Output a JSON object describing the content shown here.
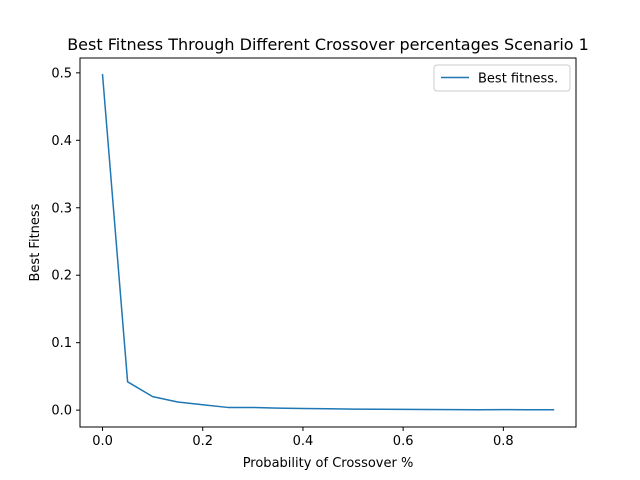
{
  "chart_data": {
    "type": "line",
    "title": "Best Fitness Through Different Crossover percentages Scenario 1",
    "xlabel": "Probability of Crossover %",
    "ylabel": "Best Fitness",
    "xlim": [
      -0.045,
      0.945
    ],
    "ylim": [
      -0.025,
      0.522
    ],
    "xticks": [
      0.0,
      0.2,
      0.4,
      0.6,
      0.8
    ],
    "xtick_labels": [
      "0.0",
      "0.2",
      "0.4",
      "0.6",
      "0.8"
    ],
    "yticks": [
      0.0,
      0.1,
      0.2,
      0.3,
      0.4,
      0.5
    ],
    "ytick_labels": [
      "0.0",
      "0.1",
      "0.2",
      "0.3",
      "0.4",
      "0.5"
    ],
    "grid": false,
    "legend_position": "top-right",
    "series": [
      {
        "name": "Best fitness.",
        "color": "#1f77b4",
        "x": [
          0.0,
          0.05,
          0.1,
          0.15,
          0.2,
          0.25,
          0.3,
          0.35,
          0.4,
          0.45,
          0.5,
          0.55,
          0.6,
          0.65,
          0.7,
          0.75,
          0.8,
          0.85,
          0.9
        ],
        "y": [
          0.497,
          0.042,
          0.02,
          0.012,
          0.008,
          0.004,
          0.004,
          0.003,
          0.0025,
          0.002,
          0.0015,
          0.0013,
          0.0012,
          0.001,
          0.0008,
          0.0006,
          0.0008,
          0.0006,
          0.0006
        ]
      }
    ]
  }
}
